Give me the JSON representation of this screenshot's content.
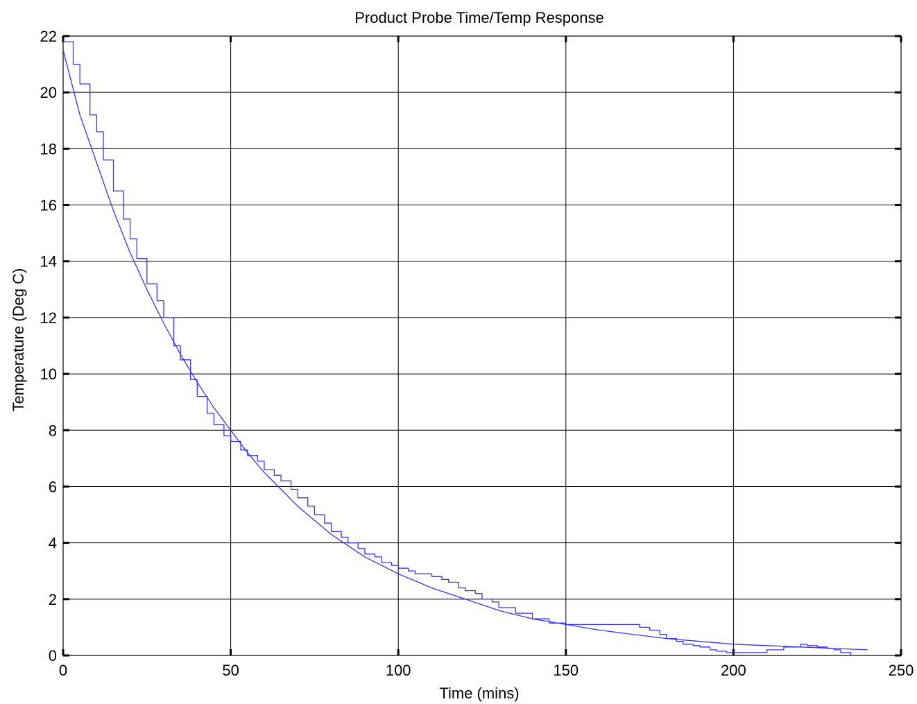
{
  "chart_data": {
    "type": "line",
    "title": "Product Probe Time/Temp Response",
    "xlabel": "Time (mins)",
    "ylabel": "Temperature (Deg C)",
    "xlim": [
      0,
      250
    ],
    "ylim": [
      0,
      22
    ],
    "xticks": [
      0,
      50,
      100,
      150,
      200,
      250
    ],
    "yticks": [
      0,
      2,
      4,
      6,
      8,
      10,
      12,
      14,
      16,
      18,
      20,
      22
    ],
    "grid": true,
    "legend": "none",
    "colors": {
      "series": "#3333ff",
      "grid": "#000000",
      "axes": "#000000"
    },
    "series": [
      {
        "style": "smooth",
        "x": [
          0,
          5,
          10,
          15,
          20,
          25,
          30,
          35,
          40,
          45,
          50,
          55,
          60,
          65,
          70,
          75,
          80,
          85,
          90,
          95,
          100,
          110,
          120,
          130,
          140,
          150,
          160,
          170,
          180,
          190,
          200,
          210,
          220,
          230,
          240
        ],
        "values": [
          21.5,
          19.2,
          17.5,
          15.8,
          14.3,
          13.0,
          11.8,
          10.7,
          9.7,
          8.8,
          8.0,
          7.2,
          6.5,
          5.9,
          5.3,
          4.8,
          4.3,
          3.9,
          3.5,
          3.2,
          2.9,
          2.4,
          2.0,
          1.6,
          1.3,
          1.1,
          0.9,
          0.75,
          0.6,
          0.5,
          0.4,
          0.35,
          0.3,
          0.25,
          0.2
        ]
      },
      {
        "style": "stepped",
        "x": [
          0,
          3,
          5,
          8,
          10,
          12,
          15,
          18,
          20,
          22,
          25,
          28,
          30,
          33,
          35,
          38,
          40,
          43,
          45,
          48,
          50,
          53,
          55,
          58,
          60,
          63,
          65,
          68,
          70,
          73,
          75,
          78,
          80,
          83,
          85,
          88,
          90,
          93,
          95,
          98,
          100,
          103,
          105,
          108,
          110,
          113,
          115,
          118,
          120,
          123,
          125,
          128,
          130,
          135,
          140,
          145,
          150,
          155,
          160,
          165,
          170,
          172,
          175,
          178,
          180,
          183,
          185,
          188,
          190,
          193,
          195,
          198,
          200,
          205,
          210,
          215,
          218,
          220,
          222,
          225,
          228,
          230,
          232,
          235
        ],
        "values": [
          21.8,
          21.0,
          20.3,
          19.2,
          18.6,
          17.6,
          16.5,
          15.5,
          14.8,
          14.1,
          13.2,
          12.6,
          12.0,
          11.0,
          10.5,
          9.8,
          9.2,
          8.6,
          8.2,
          7.8,
          7.6,
          7.3,
          7.1,
          6.9,
          6.6,
          6.4,
          6.2,
          5.9,
          5.6,
          5.3,
          5.0,
          4.7,
          4.4,
          4.2,
          4.0,
          3.8,
          3.6,
          3.5,
          3.3,
          3.2,
          3.1,
          3.0,
          2.9,
          2.9,
          2.8,
          2.7,
          2.6,
          2.4,
          2.3,
          2.2,
          2.0,
          1.9,
          1.7,
          1.5,
          1.3,
          1.15,
          1.1,
          1.1,
          1.1,
          1.1,
          1.1,
          1.0,
          0.9,
          0.75,
          0.6,
          0.5,
          0.4,
          0.35,
          0.3,
          0.2,
          0.15,
          0.1,
          0.1,
          0.1,
          0.2,
          0.3,
          0.3,
          0.4,
          0.35,
          0.3,
          0.25,
          0.2,
          0.1,
          0.0
        ]
      }
    ]
  }
}
